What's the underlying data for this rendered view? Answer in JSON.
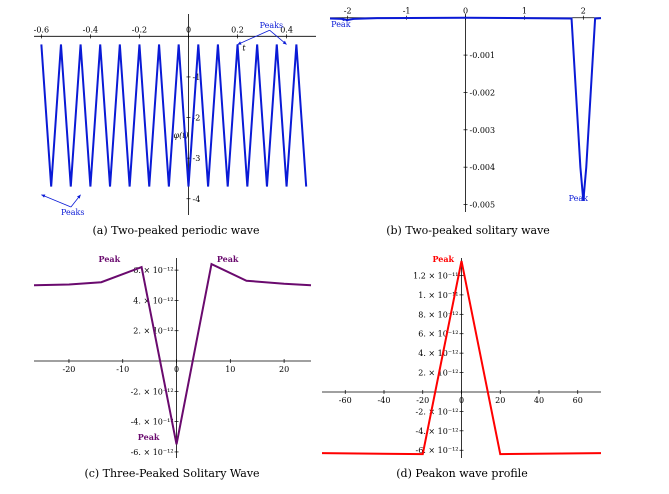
{
  "chart_data": [
    {
      "type": "line",
      "caption": "(a) Two-peaked periodic wave",
      "xlabel": "t",
      "ylabel": "φ(t)",
      "xlim": [
        -0.63,
        0.52
      ],
      "ylim": [
        -4.4,
        0.55
      ],
      "xticks": [
        -0.6,
        -0.4,
        -0.2,
        0,
        0.2,
        0.4
      ],
      "xtick_labels": [
        "-0.6",
        "-0.4",
        "-0.2",
        "0",
        "0.2",
        "0.4"
      ],
      "yticks": [
        -1,
        -2,
        -3,
        -4
      ],
      "ytick_labels": [
        "-1",
        "-2",
        "-3",
        "-4"
      ],
      "color": "#0a1ad6",
      "series": [
        {
          "x": [
            -0.6,
            -0.56,
            -0.52,
            -0.48,
            -0.44,
            -0.4,
            -0.36,
            -0.32,
            -0.28,
            -0.24,
            -0.2,
            -0.16,
            -0.12,
            -0.08,
            -0.04,
            0.0,
            0.04,
            0.08,
            0.12,
            0.16,
            0.2,
            0.24,
            0.28,
            0.32,
            0.36,
            0.4,
            0.44,
            0.48
          ],
          "y": [
            -0.2,
            -3.7,
            -0.2,
            -3.7,
            -0.2,
            -3.7,
            -0.2,
            -3.7,
            -0.2,
            -3.7,
            -0.2,
            -3.7,
            -0.2,
            -3.7,
            -0.2,
            -3.7,
            -0.2,
            -3.7,
            -0.2,
            -3.7,
            -0.2,
            -3.7,
            -0.2,
            -3.7,
            -0.2,
            -3.7,
            -0.2,
            -3.7
          ]
        }
      ],
      "annotations": [
        {
          "text": "Peaks",
          "x": 0.29,
          "y": 0.2,
          "arrows_to": [
            [
              0.2,
              -0.2
            ],
            [
              0.4,
              -0.2
            ]
          ]
        },
        {
          "text": "Peaks",
          "x": -0.52,
          "y": -4.4,
          "arrows_to": [
            [
              -0.6,
              -3.9
            ],
            [
              -0.44,
              -3.9
            ]
          ]
        }
      ]
    },
    {
      "type": "line",
      "caption": "(b) Two-peaked solitary wave",
      "xlim": [
        -2.3,
        2.3
      ],
      "ylim": [
        -0.0052,
        0.0001
      ],
      "xticks": [
        -2,
        -1,
        0,
        1,
        2
      ],
      "xtick_labels": [
        "-2",
        "-1",
        "0",
        "1",
        "2"
      ],
      "yticks": [
        -0.001,
        -0.002,
        -0.003,
        -0.004,
        -0.005
      ],
      "ytick_labels": [
        "-0.001",
        "-0.002",
        "-0.003",
        "-0.004",
        "-0.005"
      ],
      "color": "#0a1ad6",
      "series": [
        {
          "x": [
            -2.3,
            -2.1,
            -2.0,
            -1.9,
            -1.5,
            0,
            1.8,
            1.95,
            2.0,
            2.05,
            2.2,
            2.3
          ],
          "y": [
            -2e-05,
            -3e-05,
            -6e-05,
            -3e-05,
            -1e-05,
            0,
            -2e-05,
            -0.004,
            -0.0049,
            -0.004,
            -2e-05,
            -1e-05
          ]
        }
      ],
      "annotations": [
        {
          "text": "Peak",
          "x": -2.28,
          "y": -0.00025,
          "arrows_to": [
            [
              -2.02,
              -6e-05
            ]
          ]
        },
        {
          "text": "Peak",
          "x": 1.75,
          "y": -0.0049
        }
      ]
    },
    {
      "type": "line",
      "caption": "(c) Three-Peaked Solitary Wave",
      "xlim": [
        -26.5,
        25
      ],
      "ylim": [
        -6.4e-12,
        6.8e-12
      ],
      "xticks": [
        -20,
        -10,
        0,
        10,
        20
      ],
      "xtick_labels": [
        "-20",
        "-10",
        "0",
        "10",
        "20"
      ],
      "yticks": [
        6e-12,
        4e-12,
        2e-12,
        -2e-12,
        -4e-12,
        -6e-12
      ],
      "ytick_labels": [
        "6. × 10⁻¹²",
        "4. × 10⁻¹²",
        "2. × 10⁻¹²",
        "-2. × 10⁻¹²",
        "-4. × 10⁻¹²",
        "-6. × 10⁻¹²"
      ],
      "color": "#6a0a6e",
      "series": [
        {
          "x": [
            -26.5,
            -20,
            -14,
            -6.5,
            0,
            6.5,
            13,
            20,
            25
          ],
          "y": [
            5e-12,
            5.05e-12,
            5.2e-12,
            6.2e-12,
            -5.5e-12,
            6.4e-12,
            5.3e-12,
            5.1e-12,
            5e-12
          ]
        }
      ],
      "annotations": [
        {
          "text": "Peak",
          "x": -14.5,
          "y": 6.55e-12
        },
        {
          "text": "Peak",
          "x": 7.5,
          "y": 6.55e-12
        },
        {
          "text": "Peak",
          "x": -7.2,
          "y": -5.2e-12
        }
      ]
    },
    {
      "type": "line",
      "caption": "(d) Peakon wave profile",
      "xlim": [
        -72,
        72
      ],
      "ylim": [
        -6.8e-12,
        1.38e-11
      ],
      "xticks": [
        -60,
        -40,
        -20,
        0,
        20,
        40,
        60
      ],
      "xtick_labels": [
        "-60",
        "-40",
        "-20",
        "0",
        "20",
        "40",
        "60"
      ],
      "yticks": [
        1.2e-11,
        1e-11,
        8e-12,
        6e-12,
        4e-12,
        2e-12,
        -2e-12,
        -4e-12,
        -6e-12
      ],
      "ytick_labels": [
        "1.2 × 10⁻¹¹",
        "1. × 10⁻¹¹",
        "8. × 10⁻¹²",
        "6. × 10⁻¹²",
        "4. × 10⁻¹²",
        "2. × 10⁻¹²",
        "-2. × 10⁻¹²",
        "-4. × 10⁻¹²",
        "-6. × 10⁻¹²"
      ],
      "color": "#ff0000",
      "series": [
        {
          "x": [
            -72,
            -20,
            0,
            20,
            72
          ],
          "y": [
            -6.3e-12,
            -6.4e-12,
            1.35e-11,
            -6.4e-12,
            -6.3e-12
          ]
        }
      ],
      "annotations": [
        {
          "text": "Peak",
          "x": -15,
          "y": 1.34e-11
        }
      ]
    }
  ]
}
